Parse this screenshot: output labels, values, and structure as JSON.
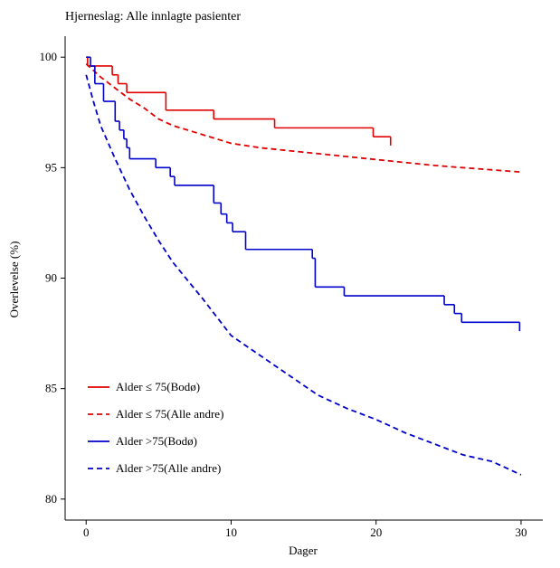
{
  "chart_data": {
    "type": "line",
    "title": "Hjerneslag: Alle innlagte pasienter",
    "x_label": "Dager",
    "y_label": "Overlevelse (%)",
    "xlim": [
      -1.45,
      31.5
    ],
    "ylim": [
      79.05,
      100.95
    ],
    "xticks": [
      0,
      10,
      20,
      30
    ],
    "yticks": [
      80,
      85,
      90,
      95,
      100
    ],
    "legend": "bottom-left",
    "series": [
      {
        "name": "Alder ≤ 75(Bodø)",
        "color": "#e00000",
        "dashed": false,
        "step": true,
        "x": [
          0,
          0.1,
          1.8,
          2.2,
          2.8,
          5.5,
          8.8,
          13,
          19.8,
          21
        ],
        "values": [
          100,
          99.6,
          99.2,
          98.8,
          98.4,
          97.6,
          97.2,
          96.8,
          96.4,
          96.0
        ]
      },
      {
        "name": "Alder ≤ 75(Alle andre)",
        "color": "#e00000",
        "dashed": true,
        "step": false,
        "x": [
          0,
          0.5,
          1,
          2,
          3,
          4,
          5,
          6,
          8,
          10,
          12,
          15,
          18,
          21,
          24,
          27,
          30
        ],
        "values": [
          99.7,
          99.4,
          99.1,
          98.6,
          98.1,
          97.7,
          97.2,
          96.9,
          96.5,
          96.1,
          95.9,
          95.7,
          95.5,
          95.3,
          95.1,
          94.95,
          94.8
        ]
      },
      {
        "name": "Alder >75(Bodø)",
        "color": "#0000cc",
        "dashed": false,
        "step": true,
        "x": [
          0,
          0.3,
          0.6,
          1.2,
          2,
          2.3,
          2.6,
          2.8,
          3,
          4.8,
          5.8,
          6.1,
          8.8,
          9.3,
          9.7,
          10.1,
          11,
          15.6,
          15.8,
          17.8,
          24.7,
          25.4,
          25.9,
          29.9
        ],
        "values": [
          100,
          99.6,
          98.8,
          98.0,
          97.1,
          96.7,
          96.3,
          95.9,
          95.4,
          95.0,
          94.6,
          94.2,
          93.4,
          92.9,
          92.5,
          92.1,
          91.3,
          90.9,
          89.6,
          89.2,
          88.8,
          88.4,
          88.0,
          87.6
        ]
      },
      {
        "name": "Alder >75(Alle andre)",
        "color": "#0000cc",
        "dashed": true,
        "step": false,
        "x": [
          0,
          0.5,
          1,
          2,
          3,
          4,
          5,
          6,
          8,
          10,
          12,
          14,
          16,
          18,
          20,
          22,
          24,
          26,
          28,
          30
        ],
        "values": [
          99.2,
          98.0,
          96.9,
          95.4,
          94.0,
          92.8,
          91.7,
          90.7,
          89.1,
          87.4,
          86.5,
          85.6,
          84.7,
          84.1,
          83.6,
          83.0,
          82.5,
          82.0,
          81.7,
          81.1
        ]
      }
    ]
  }
}
